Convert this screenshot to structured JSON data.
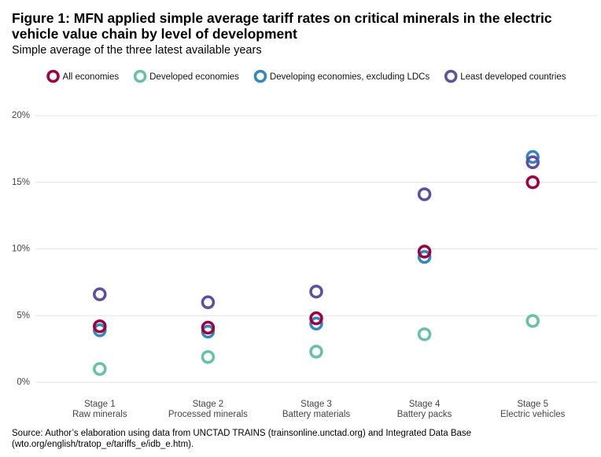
{
  "chart_data": {
    "type": "dot",
    "title": "Figure 1: MFN applied simple average tariff rates on critical minerals in the electric vehicle value chain by level of development",
    "subtitle": "Simple average of the three latest available years",
    "source": "Source: Author’s elaboration using data from UNCTAD TRAINS (trainsonline.unctad.org) and Integrated Data Base (wto.org/english/tratop_e/tariffs_e/idb_e.htm).",
    "categories": [
      [
        "Stage 1",
        "Raw minerals"
      ],
      [
        "Stage 2",
        "Processed minerals"
      ],
      [
        "Stage 3",
        "Battery materials"
      ],
      [
        "Stage 4",
        "Battery packs"
      ],
      [
        "Stage 5",
        "Electric vehicles"
      ]
    ],
    "series": [
      {
        "name": "All economies",
        "color": "#9e0142",
        "values": [
          4.2,
          4.1,
          4.8,
          9.8,
          15.0
        ]
      },
      {
        "name": "Developed economies",
        "color": "#66c2a5",
        "values": [
          1.0,
          1.9,
          2.3,
          3.6,
          4.6
        ]
      },
      {
        "name": "Developing economies, excluding LDCs",
        "color": "#3288bd",
        "values": [
          3.9,
          3.8,
          4.4,
          9.4,
          16.9
        ]
      },
      {
        "name": "Least developed countries",
        "color": "#5e4fa2",
        "values": [
          6.6,
          6.0,
          6.8,
          14.1,
          16.5
        ]
      }
    ],
    "ylim": [
      -0.6,
      20.8
    ],
    "yticks": [
      {
        "value": 0,
        "label": "0%"
      },
      {
        "value": 5,
        "label": "5%"
      },
      {
        "value": 10,
        "label": "10%"
      },
      {
        "value": 15,
        "label": "15%"
      },
      {
        "value": 20,
        "label": "20%"
      }
    ],
    "grid": true,
    "legend": "top"
  }
}
